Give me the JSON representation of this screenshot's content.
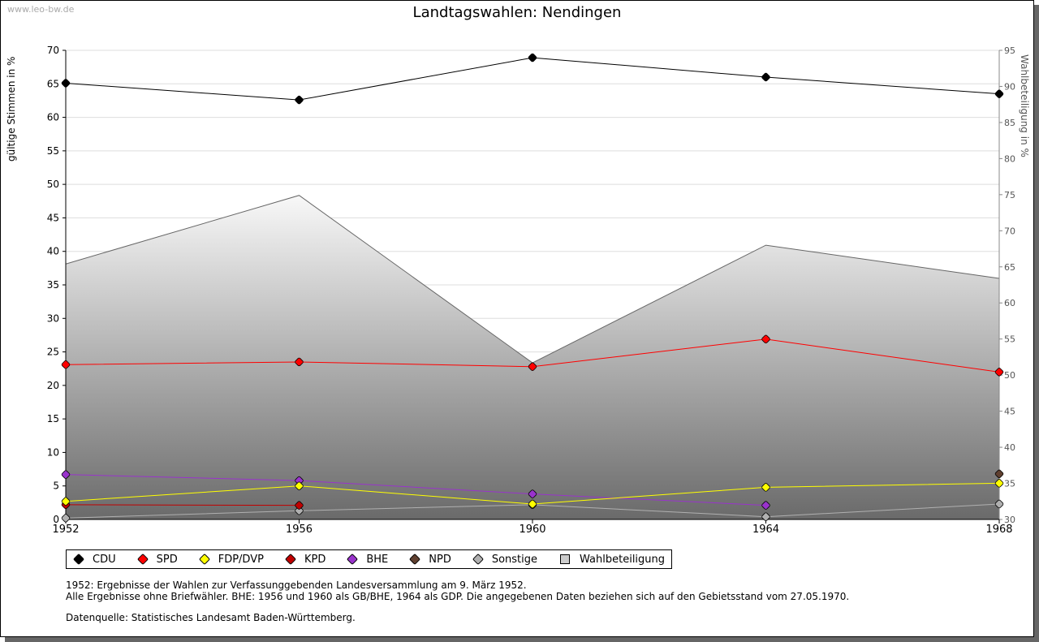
{
  "source": "www.leo-bw.de",
  "chart_data": {
    "type": "line",
    "title": "Landtagswahlen: Nendingen",
    "ylabel": "gültige Stimmen in %",
    "y2label": "Wahlbeteiligung in %",
    "x": [
      "1952",
      "1956",
      "1960",
      "1964",
      "1968"
    ],
    "ylim": [
      0,
      70
    ],
    "yticks": [
      0,
      5,
      10,
      15,
      20,
      25,
      30,
      35,
      40,
      45,
      50,
      55,
      60,
      65,
      70
    ],
    "y2lim": [
      30,
      95
    ],
    "y2ticks": [
      30,
      35,
      40,
      45,
      50,
      55,
      60,
      65,
      70,
      75,
      80,
      85,
      90,
      95
    ],
    "series": [
      {
        "name": "CDU",
        "color": "#000000",
        "values": [
          65.1,
          62.6,
          68.9,
          66.0,
          63.5
        ]
      },
      {
        "name": "SPD",
        "color": "#ff0000",
        "values": [
          23.1,
          23.5,
          22.8,
          26.9,
          22.0
        ]
      },
      {
        "name": "FDP/DVP",
        "color": "#ffff00",
        "values": [
          2.7,
          5.0,
          2.3,
          4.8,
          5.4
        ]
      },
      {
        "name": "KPD",
        "color": "#c00000",
        "values": [
          2.2,
          2.1,
          null,
          null,
          null
        ]
      },
      {
        "name": "BHE",
        "color": "#9933cc",
        "values": [
          6.7,
          5.8,
          3.8,
          2.1,
          null
        ]
      },
      {
        "name": "NPD",
        "color": "#604030",
        "values": [
          null,
          null,
          null,
          null,
          6.8
        ]
      },
      {
        "name": "Sonstige",
        "color": "#b0b0b0",
        "values": [
          0.2,
          1.3,
          2.2,
          0.4,
          2.3
        ]
      }
    ],
    "turnout": {
      "name": "Wahlbeteiligung",
      "axis": "right",
      "values": [
        65.4,
        74.9,
        51.7,
        68.0,
        63.4
      ]
    },
    "legend": "bottom-left",
    "grid": true
  },
  "notes": [
    "1952: Ergebnisse der Wahlen zur Verfassunggebenden Landesversammlung am 9. März 1952.",
    "Alle Ergebnisse ohne Briefwähler. BHE: 1956 und 1960 als GB/BHE, 1964 als GDP. Die angegebenen Daten beziehen sich auf den Gebietsstand vom 27.05.1970.",
    "",
    "Datenquelle: Statistisches Landesamt Baden-Württemberg."
  ]
}
